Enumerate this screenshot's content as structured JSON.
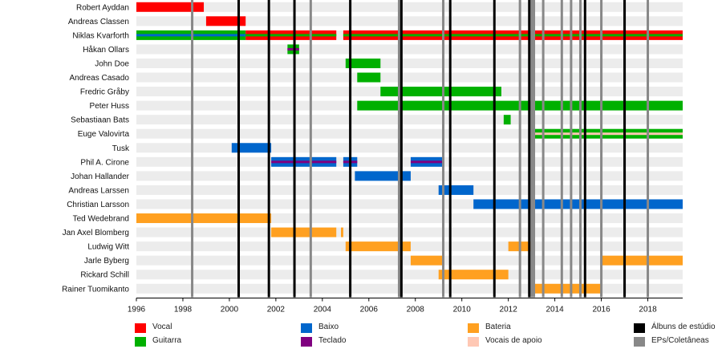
{
  "chart_data": {
    "type": "timeline",
    "xlim": [
      1996,
      2019.5
    ],
    "x_ticks": [
      "1996",
      "1998",
      "2000",
      "2002",
      "2004",
      "2006",
      "2008",
      "2010",
      "2012",
      "2014",
      "2016",
      "2018"
    ],
    "colors": {
      "Vocal": "#ff0000",
      "Guitarra": "#00b000",
      "Baixo": "#0066cc",
      "Teclado": "#800080",
      "Bateria": "#ffa020",
      "Vocais de apoio": "#ffc8b4",
      "Álbuns de estúdio": "#000000",
      "EPs/Coletâneas": "#888888"
    },
    "members": [
      {
        "name": "Robert Ayddan",
        "periods": [
          {
            "start": 1996.0,
            "end": 1998.9,
            "roles": [
              "Vocal"
            ]
          }
        ]
      },
      {
        "name": "Andreas Classen",
        "periods": [
          {
            "start": 1999.0,
            "end": 2000.7,
            "roles": [
              "Vocal"
            ]
          }
        ]
      },
      {
        "name": "Niklas Kvarforth",
        "periods": [
          {
            "start": 1996.0,
            "end": 2000.7,
            "roles": [
              "Guitarra",
              "Baixo"
            ]
          },
          {
            "start": 2000.7,
            "end": 2004.6,
            "roles": [
              "Vocal",
              "Guitarra"
            ]
          },
          {
            "start": 2004.9,
            "end": 2019.5,
            "roles": [
              "Vocal",
              "Guitarra"
            ]
          }
        ]
      },
      {
        "name": "Håkan Ollars",
        "periods": [
          {
            "start": 2002.5,
            "end": 2003.0,
            "roles": [
              "Guitarra",
              "Teclado"
            ]
          }
        ]
      },
      {
        "name": "John Doe",
        "periods": [
          {
            "start": 2005.0,
            "end": 2006.5,
            "roles": [
              "Guitarra"
            ]
          }
        ]
      },
      {
        "name": "Andreas Casado",
        "periods": [
          {
            "start": 2005.5,
            "end": 2006.5,
            "roles": [
              "Guitarra"
            ]
          }
        ]
      },
      {
        "name": "Fredric Gråby",
        "periods": [
          {
            "start": 2006.5,
            "end": 2011.7,
            "roles": [
              "Guitarra"
            ]
          }
        ]
      },
      {
        "name": "Peter Huss",
        "periods": [
          {
            "start": 2005.5,
            "end": 2019.5,
            "roles": [
              "Guitarra"
            ]
          }
        ]
      },
      {
        "name": "Sebastiaan Bats",
        "periods": [
          {
            "start": 2011.8,
            "end": 2012.1,
            "roles": [
              "Guitarra"
            ]
          }
        ]
      },
      {
        "name": "Euge Valovirta",
        "periods": [
          {
            "start": 2013.0,
            "end": 2019.5,
            "roles": [
              "Guitarra",
              "Vocais de apoio"
            ]
          }
        ]
      },
      {
        "name": "Tusk",
        "periods": [
          {
            "start": 2000.1,
            "end": 2001.8,
            "roles": [
              "Baixo"
            ]
          }
        ]
      },
      {
        "name": "Phil A. Cirone",
        "periods": [
          {
            "start": 2001.8,
            "end": 2004.6,
            "roles": [
              "Baixo",
              "Teclado"
            ]
          },
          {
            "start": 2004.9,
            "end": 2005.5,
            "roles": [
              "Baixo",
              "Teclado"
            ]
          },
          {
            "start": 2007.8,
            "end": 2009.2,
            "roles": [
              "Baixo",
              "Teclado"
            ]
          }
        ]
      },
      {
        "name": "Johan Hallander",
        "periods": [
          {
            "start": 2005.4,
            "end": 2007.8,
            "roles": [
              "Baixo"
            ]
          }
        ]
      },
      {
        "name": "Andreas Larssen",
        "periods": [
          {
            "start": 2009.0,
            "end": 2010.5,
            "roles": [
              "Baixo"
            ]
          }
        ]
      },
      {
        "name": "Christian Larsson",
        "periods": [
          {
            "start": 2010.5,
            "end": 2019.5,
            "roles": [
              "Baixo"
            ]
          }
        ]
      },
      {
        "name": "Ted Wedebrand",
        "periods": [
          {
            "start": 1996.0,
            "end": 2001.8,
            "roles": [
              "Bateria"
            ]
          }
        ]
      },
      {
        "name": "Jan Axel Blomberg",
        "periods": [
          {
            "start": 2001.8,
            "end": 2004.6,
            "roles": [
              "Bateria"
            ]
          },
          {
            "start": 2004.8,
            "end": 2004.9,
            "roles": [
              "Bateria"
            ]
          }
        ]
      },
      {
        "name": "Ludwig Witt",
        "periods": [
          {
            "start": 2005.0,
            "end": 2007.8,
            "roles": [
              "Bateria"
            ]
          },
          {
            "start": 2012.0,
            "end": 2013.0,
            "roles": [
              "Bateria"
            ]
          }
        ]
      },
      {
        "name": "Jarle Byberg",
        "periods": [
          {
            "start": 2007.8,
            "end": 2009.2,
            "roles": [
              "Bateria"
            ]
          },
          {
            "start": 2016.0,
            "end": 2019.5,
            "roles": [
              "Bateria"
            ]
          }
        ]
      },
      {
        "name": "Rickard Schill",
        "periods": [
          {
            "start": 2009.0,
            "end": 2012.0,
            "roles": [
              "Bateria"
            ]
          }
        ]
      },
      {
        "name": "Rainer Tuomikanto",
        "periods": [
          {
            "start": 2013.0,
            "end": 2016.0,
            "roles": [
              "Bateria"
            ]
          }
        ]
      }
    ],
    "studio_albums": [
      2000.4,
      2001.7,
      2002.8,
      2005.2,
      2007.4,
      2009.5,
      2011.4,
      2012.9,
      2015.3,
      2017.0
    ],
    "eps_compilations": [
      1998.4,
      2003.5,
      2007.3,
      2009.2,
      2012.5,
      2013.0,
      2013.1,
      2013.5,
      2014.3,
      2014.7,
      2015.1,
      2016.0,
      2017.0,
      2018.0
    ],
    "legend": [
      {
        "label": "Vocal",
        "color": "#ff0000"
      },
      {
        "label": "Guitarra",
        "color": "#00b000"
      },
      {
        "label": "Baixo",
        "color": "#0066cc"
      },
      {
        "label": "Teclado",
        "color": "#800080"
      },
      {
        "label": "Bateria",
        "color": "#ffa020"
      },
      {
        "label": "Vocais de apoio",
        "color": "#ffc8b4"
      },
      {
        "label": "Álbuns de estúdio",
        "color": "#000000"
      },
      {
        "label": "EPs/Coletâneas",
        "color": "#888888"
      }
    ]
  }
}
